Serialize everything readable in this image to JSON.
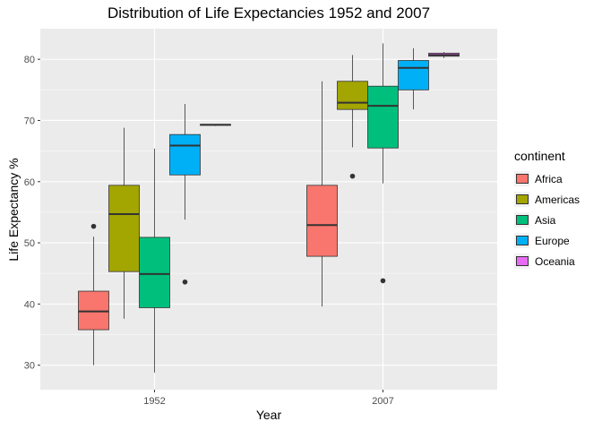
{
  "chart_data": {
    "type": "boxplot",
    "title": "Distribution of Life Expectancies 1952 and 2007",
    "xlabel": "Year",
    "ylabel": "Life Expectancy %",
    "categories": [
      "1952",
      "2007"
    ],
    "ylim": [
      26,
      85
    ],
    "yticks": [
      30,
      40,
      50,
      60,
      70,
      80
    ],
    "grid": true,
    "legend": {
      "title": "continent",
      "position": "right",
      "entries": [
        "Africa",
        "Americas",
        "Asia",
        "Europe",
        "Oceania"
      ]
    },
    "series": [
      {
        "name": "Africa",
        "color": "#F8766D",
        "boxes": [
          {
            "x": "1952",
            "min": 30.0,
            "q1": 35.8,
            "median": 38.8,
            "q3": 42.1,
            "max": 51.0,
            "outliers": [
              52.7
            ]
          },
          {
            "x": "2007",
            "min": 39.6,
            "q1": 47.8,
            "median": 52.9,
            "q3": 59.4,
            "max": 76.4,
            "outliers": []
          }
        ]
      },
      {
        "name": "Americas",
        "color": "#A3A500",
        "boxes": [
          {
            "x": "1952",
            "min": 37.6,
            "q1": 45.3,
            "median": 54.7,
            "q3": 59.4,
            "max": 68.8,
            "outliers": []
          },
          {
            "x": "2007",
            "min": 65.6,
            "q1": 71.8,
            "median": 72.9,
            "q3": 76.4,
            "max": 80.7,
            "outliers": [
              60.9
            ]
          }
        ]
      },
      {
        "name": "Asia",
        "color": "#00BF7D",
        "boxes": [
          {
            "x": "1952",
            "min": 28.8,
            "q1": 39.4,
            "median": 44.9,
            "q3": 50.9,
            "max": 65.4,
            "outliers": []
          },
          {
            "x": "2007",
            "min": 59.7,
            "q1": 65.5,
            "median": 72.4,
            "q3": 75.6,
            "max": 82.6,
            "outliers": [
              43.8
            ]
          }
        ]
      },
      {
        "name": "Europe",
        "color": "#00B0F6",
        "boxes": [
          {
            "x": "1952",
            "min": 53.8,
            "q1": 61.1,
            "median": 65.9,
            "q3": 67.7,
            "max": 72.7,
            "outliers": [
              43.6
            ]
          },
          {
            "x": "2007",
            "min": 71.8,
            "q1": 75.0,
            "median": 78.6,
            "q3": 79.8,
            "max": 81.8,
            "outliers": []
          }
        ]
      },
      {
        "name": "Oceania",
        "color": "#E76BF3",
        "boxes": [
          {
            "x": "1952",
            "min": 69.1,
            "q1": 69.2,
            "median": 69.3,
            "q3": 69.35,
            "max": 69.4,
            "outliers": []
          },
          {
            "x": "2007",
            "min": 80.2,
            "q1": 80.5,
            "median": 80.7,
            "q3": 81.0,
            "max": 81.2,
            "outliers": []
          }
        ]
      }
    ]
  }
}
